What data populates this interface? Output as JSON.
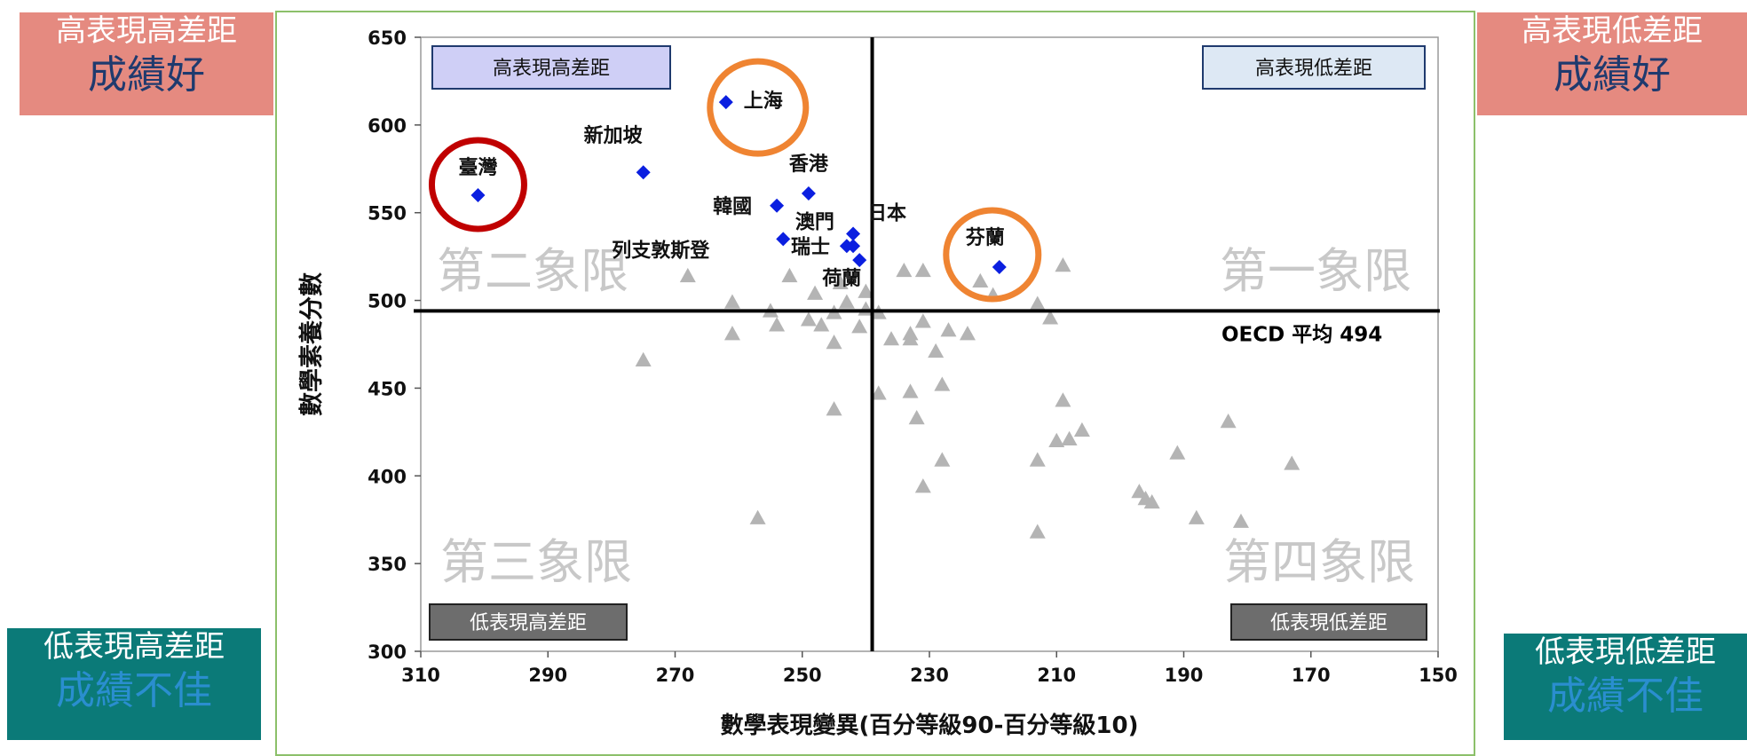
{
  "corners": {
    "top_left": {
      "line1": "高表現高差距",
      "line2": "成績好"
    },
    "top_right": {
      "line1": "高表現低差距",
      "line2": "成績好"
    },
    "bottom_left": {
      "line1": "低表現高差距",
      "line2": "成績不佳"
    },
    "bottom_right": {
      "line1": "低表現低差距",
      "line2": "成績不佳"
    }
  },
  "colors": {
    "highlight_points": "#0b1fe0",
    "other_points": "#b4b4b4",
    "taiwan_circle": "#c00000",
    "highlight_circle": "#ef8432",
    "quadrant_text": "#c8c8c8"
  },
  "chart_data": {
    "type": "scatter",
    "xlabel": "數學表現變異(百分等級90-百分等級10)",
    "ylabel": "數學素養分數",
    "xlim": [
      310,
      150
    ],
    "ylim": [
      300,
      650
    ],
    "xticks": [
      310,
      290,
      270,
      250,
      230,
      210,
      190,
      170,
      150
    ],
    "yticks": [
      300,
      350,
      400,
      450,
      500,
      550,
      600,
      650
    ],
    "grid": false,
    "reference_lines": {
      "x": 239,
      "y": 494,
      "y_label": "OECD 平均 494"
    },
    "quadrant_labels": {
      "q1": "第一象限",
      "q2": "第二象限",
      "q3": "第三象限",
      "q4": "第四象限"
    },
    "quadrant_boxes": {
      "top_left": "高表現高差距",
      "top_right": "高表現低差距",
      "bottom_left": "低表現高差距",
      "bottom_right": "低表現低差距"
    },
    "highlighted": [
      {
        "name": "臺灣",
        "x": 301,
        "y": 560,
        "circle": "red"
      },
      {
        "name": "新加坡",
        "x": 275,
        "y": 573
      },
      {
        "name": "上海",
        "x": 262,
        "y": 613,
        "circle": "orange"
      },
      {
        "name": "香港",
        "x": 249,
        "y": 561
      },
      {
        "name": "韓國",
        "x": 254,
        "y": 554
      },
      {
        "name": "列支敦斯登",
        "x": 253,
        "y": 535
      },
      {
        "name": "澳門",
        "x": 243,
        "y": 531
      },
      {
        "name": "日本",
        "x": 242,
        "y": 538
      },
      {
        "name": "瑞士",
        "x": 242,
        "y": 531
      },
      {
        "name": "荷蘭",
        "x": 241,
        "y": 523
      },
      {
        "name": "芬蘭",
        "x": 219,
        "y": 519,
        "circle": "orange"
      }
    ],
    "others": [
      {
        "x": 275,
        "y": 466
      },
      {
        "x": 268,
        "y": 514
      },
      {
        "x": 261,
        "y": 499
      },
      {
        "x": 261,
        "y": 481
      },
      {
        "x": 257,
        "y": 376
      },
      {
        "x": 255,
        "y": 494
      },
      {
        "x": 254,
        "y": 486
      },
      {
        "x": 252,
        "y": 514
      },
      {
        "x": 249,
        "y": 489
      },
      {
        "x": 248,
        "y": 504
      },
      {
        "x": 247,
        "y": 486
      },
      {
        "x": 245,
        "y": 493
      },
      {
        "x": 245,
        "y": 476
      },
      {
        "x": 245,
        "y": 438
      },
      {
        "x": 244,
        "y": 510
      },
      {
        "x": 243,
        "y": 499
      },
      {
        "x": 241,
        "y": 485
      },
      {
        "x": 240,
        "y": 505
      },
      {
        "x": 240,
        "y": 495
      },
      {
        "x": 238,
        "y": 493
      },
      {
        "x": 238,
        "y": 447
      },
      {
        "x": 236,
        "y": 478
      },
      {
        "x": 234,
        "y": 517
      },
      {
        "x": 233,
        "y": 481
      },
      {
        "x": 233,
        "y": 478
      },
      {
        "x": 233,
        "y": 448
      },
      {
        "x": 232,
        "y": 433
      },
      {
        "x": 231,
        "y": 517
      },
      {
        "x": 231,
        "y": 488
      },
      {
        "x": 231,
        "y": 394
      },
      {
        "x": 229,
        "y": 471
      },
      {
        "x": 228,
        "y": 452
      },
      {
        "x": 228,
        "y": 409
      },
      {
        "x": 227,
        "y": 483
      },
      {
        "x": 224,
        "y": 481
      },
      {
        "x": 222,
        "y": 511
      },
      {
        "x": 220,
        "y": 503
      },
      {
        "x": 213,
        "y": 498
      },
      {
        "x": 213,
        "y": 409
      },
      {
        "x": 213,
        "y": 368
      },
      {
        "x": 211,
        "y": 490
      },
      {
        "x": 209,
        "y": 520
      },
      {
        "x": 209,
        "y": 443
      },
      {
        "x": 210,
        "y": 420
      },
      {
        "x": 208,
        "y": 421
      },
      {
        "x": 206,
        "y": 426
      },
      {
        "x": 197,
        "y": 391
      },
      {
        "x": 196,
        "y": 387
      },
      {
        "x": 195,
        "y": 385
      },
      {
        "x": 191,
        "y": 413
      },
      {
        "x": 188,
        "y": 376
      },
      {
        "x": 183,
        "y": 431
      },
      {
        "x": 181,
        "y": 374
      },
      {
        "x": 173,
        "y": 407
      }
    ]
  }
}
